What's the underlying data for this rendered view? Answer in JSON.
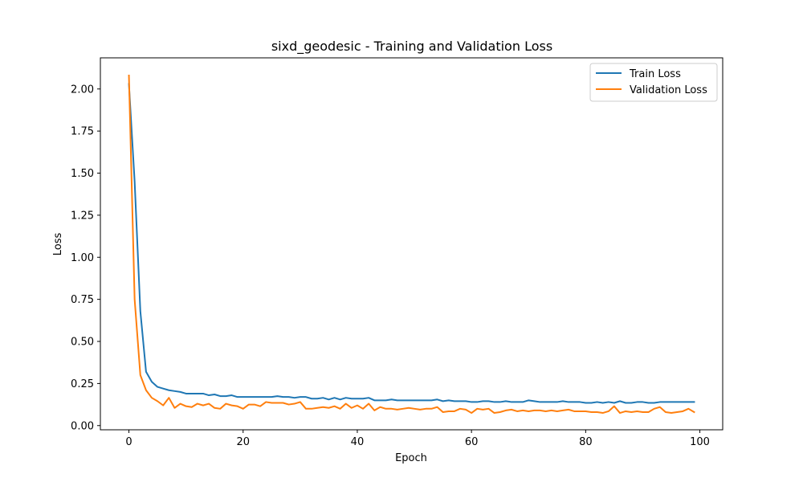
{
  "chart_data": {
    "type": "line",
    "title": "sixd_geodesic - Training and Validation Loss",
    "xlabel": "Epoch",
    "ylabel": "Loss",
    "xlim": [
      -5,
      104
    ],
    "ylim": [
      -0.025,
      2.185
    ],
    "xticks": [
      0,
      20,
      40,
      60,
      80,
      100
    ],
    "yticks": [
      0.0,
      0.25,
      0.5,
      0.75,
      1.0,
      1.25,
      1.5,
      1.75,
      2.0
    ],
    "ytick_labels": [
      "0.00",
      "0.25",
      "0.50",
      "0.75",
      "1.00",
      "1.25",
      "1.50",
      "1.75",
      "2.00"
    ],
    "xtick_labels": [
      "0",
      "20",
      "40",
      "60",
      "80",
      "100"
    ],
    "grid": false,
    "legend": "top-right",
    "x": [
      0,
      1,
      2,
      3,
      4,
      5,
      6,
      7,
      8,
      9,
      10,
      11,
      12,
      13,
      14,
      15,
      16,
      17,
      18,
      19,
      20,
      21,
      22,
      23,
      24,
      25,
      26,
      27,
      28,
      29,
      30,
      31,
      32,
      33,
      34,
      35,
      36,
      37,
      38,
      39,
      40,
      41,
      42,
      43,
      44,
      45,
      46,
      47,
      48,
      49,
      50,
      51,
      52,
      53,
      54,
      55,
      56,
      57,
      58,
      59,
      60,
      61,
      62,
      63,
      64,
      65,
      66,
      67,
      68,
      69,
      70,
      71,
      72,
      73,
      74,
      75,
      76,
      77,
      78,
      79,
      80,
      81,
      82,
      83,
      84,
      85,
      86,
      87,
      88,
      89,
      90,
      91,
      92,
      93,
      94,
      95,
      96,
      97,
      98,
      99
    ],
    "series": [
      {
        "name": "Train Loss",
        "color": "#1f77b4",
        "values": [
          2.03,
          1.45,
          0.68,
          0.32,
          0.26,
          0.23,
          0.22,
          0.21,
          0.205,
          0.2,
          0.19,
          0.19,
          0.19,
          0.19,
          0.18,
          0.185,
          0.175,
          0.175,
          0.18,
          0.17,
          0.17,
          0.17,
          0.17,
          0.17,
          0.17,
          0.17,
          0.175,
          0.17,
          0.17,
          0.165,
          0.17,
          0.17,
          0.16,
          0.16,
          0.165,
          0.155,
          0.165,
          0.155,
          0.165,
          0.16,
          0.16,
          0.16,
          0.165,
          0.15,
          0.15,
          0.15,
          0.155,
          0.15,
          0.15,
          0.15,
          0.15,
          0.15,
          0.15,
          0.15,
          0.155,
          0.145,
          0.15,
          0.145,
          0.145,
          0.145,
          0.14,
          0.14,
          0.145,
          0.145,
          0.14,
          0.14,
          0.145,
          0.14,
          0.14,
          0.14,
          0.15,
          0.145,
          0.14,
          0.14,
          0.14,
          0.14,
          0.145,
          0.14,
          0.14,
          0.14,
          0.135,
          0.135,
          0.14,
          0.135,
          0.14,
          0.135,
          0.145,
          0.135,
          0.135,
          0.14,
          0.14,
          0.135,
          0.135,
          0.14,
          0.14,
          0.14,
          0.14,
          0.14,
          0.14,
          0.14
        ]
      },
      {
        "name": "Validation Loss",
        "color": "#ff7f0e",
        "values": [
          2.08,
          0.75,
          0.3,
          0.21,
          0.165,
          0.145,
          0.12,
          0.165,
          0.105,
          0.13,
          0.115,
          0.11,
          0.13,
          0.12,
          0.13,
          0.105,
          0.1,
          0.13,
          0.12,
          0.115,
          0.1,
          0.125,
          0.125,
          0.115,
          0.14,
          0.135,
          0.135,
          0.135,
          0.125,
          0.13,
          0.14,
          0.1,
          0.1,
          0.105,
          0.11,
          0.105,
          0.115,
          0.1,
          0.13,
          0.105,
          0.12,
          0.1,
          0.13,
          0.09,
          0.11,
          0.1,
          0.1,
          0.095,
          0.1,
          0.105,
          0.1,
          0.095,
          0.1,
          0.1,
          0.11,
          0.08,
          0.085,
          0.085,
          0.1,
          0.095,
          0.075,
          0.1,
          0.095,
          0.1,
          0.075,
          0.08,
          0.09,
          0.095,
          0.085,
          0.09,
          0.085,
          0.09,
          0.09,
          0.085,
          0.09,
          0.085,
          0.09,
          0.095,
          0.085,
          0.085,
          0.085,
          0.08,
          0.08,
          0.075,
          0.085,
          0.115,
          0.075,
          0.085,
          0.08,
          0.085,
          0.08,
          0.08,
          0.1,
          0.11,
          0.08,
          0.075,
          0.08,
          0.085,
          0.1,
          0.08
        ]
      }
    ]
  }
}
